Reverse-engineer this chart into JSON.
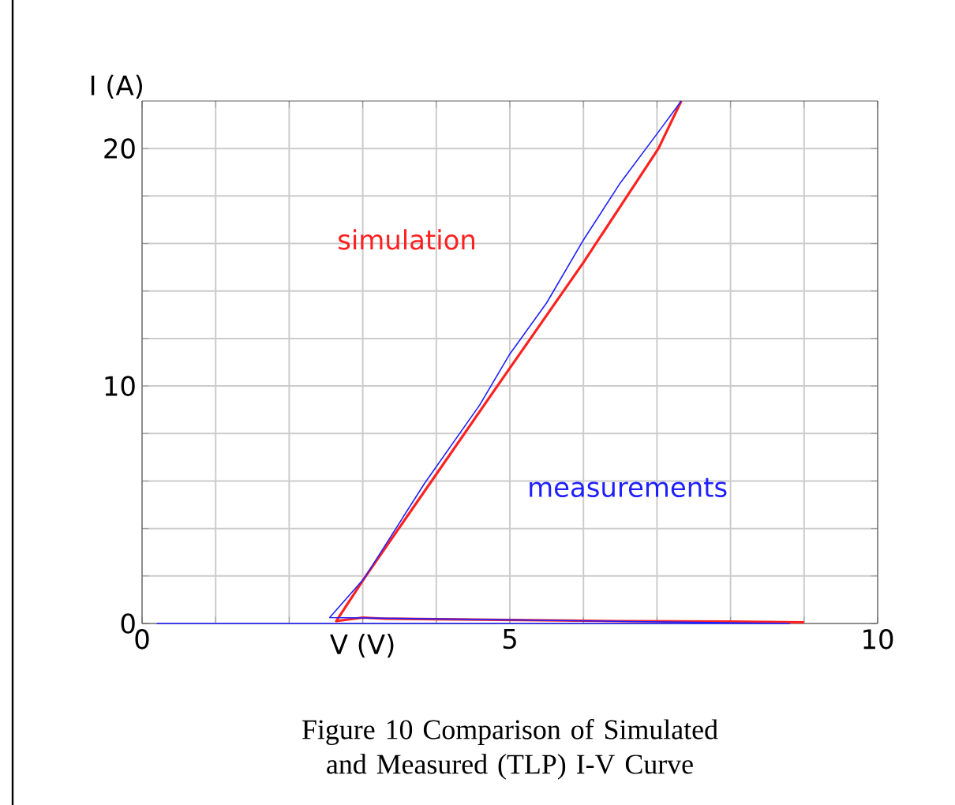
{
  "chart_data": {
    "type": "line",
    "xlabel": "V (V)",
    "ylabel": "I (A)",
    "xlim": [
      0,
      10
    ],
    "ylim": [
      0,
      22
    ],
    "xticks": [
      0,
      {
        "value": 1,
        "label": null
      },
      {
        "value": 2,
        "label": null
      },
      {
        "value": 3,
        "label": null
      },
      {
        "value": 4,
        "label": null
      },
      5,
      {
        "value": 6,
        "label": null
      },
      {
        "value": 7,
        "label": null
      },
      {
        "value": 8,
        "label": null
      },
      {
        "value": 9,
        "label": null
      },
      10
    ],
    "yticks": [
      0,
      {
        "value": 2,
        "label": null
      },
      {
        "value": 4,
        "label": null
      },
      {
        "value": 6,
        "label": null
      },
      {
        "value": 8,
        "label": null
      },
      10,
      {
        "value": 12,
        "label": null
      },
      {
        "value": 14,
        "label": null
      },
      {
        "value": 16,
        "label": null
      },
      {
        "value": 18,
        "label": null
      },
      20
    ],
    "grid": true,
    "marker": "none",
    "line_style": "solid",
    "series": [
      {
        "name": "simulation",
        "color": "#ff2020",
        "x": [
          9.0,
          8.0,
          6.5,
          3.3,
          3.0,
          2.64,
          3.02,
          4.83,
          6.0,
          7.02,
          7.33
        ],
        "values": [
          0.05,
          0.08,
          0.1,
          0.2,
          0.25,
          0.1,
          1.9,
          10.0,
          15.2,
          20.0,
          22.0
        ]
      },
      {
        "name": "measurements",
        "color": "#2020ff",
        "x": [
          0.2,
          4.0,
          8.8,
          2.55,
          3.02,
          3.84,
          4.59,
          5.0,
          5.5,
          5.99,
          6.49,
          7.02,
          7.33
        ],
        "values": [
          0.0,
          0.0,
          0.0,
          0.25,
          1.9,
          5.9,
          9.2,
          11.35,
          13.5,
          16.1,
          18.5,
          20.7,
          22.0
        ]
      }
    ],
    "annotations": [
      "Figure 10 Comparison of Simulated and Measured (TLP) I-V Curve"
    ]
  }
}
